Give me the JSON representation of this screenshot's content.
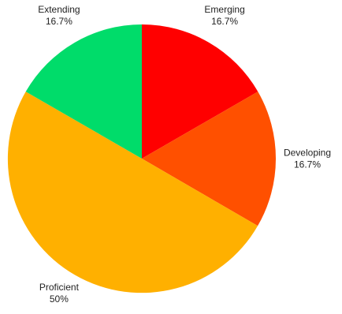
{
  "chart_data": {
    "type": "pie",
    "title": "",
    "legend": "none",
    "start_angle_deg": 0,
    "direction": "clockwise",
    "slices": [
      {
        "name": "Emerging",
        "value": 16.7,
        "label": "16.7%",
        "color": "#ff0000"
      },
      {
        "name": "Developing",
        "value": 16.7,
        "label": "16.7%",
        "color": "#ff5000"
      },
      {
        "name": "Proficient",
        "value": 50.0,
        "label": "50%",
        "color": "#ffb000"
      },
      {
        "name": "Extending",
        "value": 16.7,
        "label": "16.7%",
        "color": "#00dc6a"
      }
    ]
  }
}
